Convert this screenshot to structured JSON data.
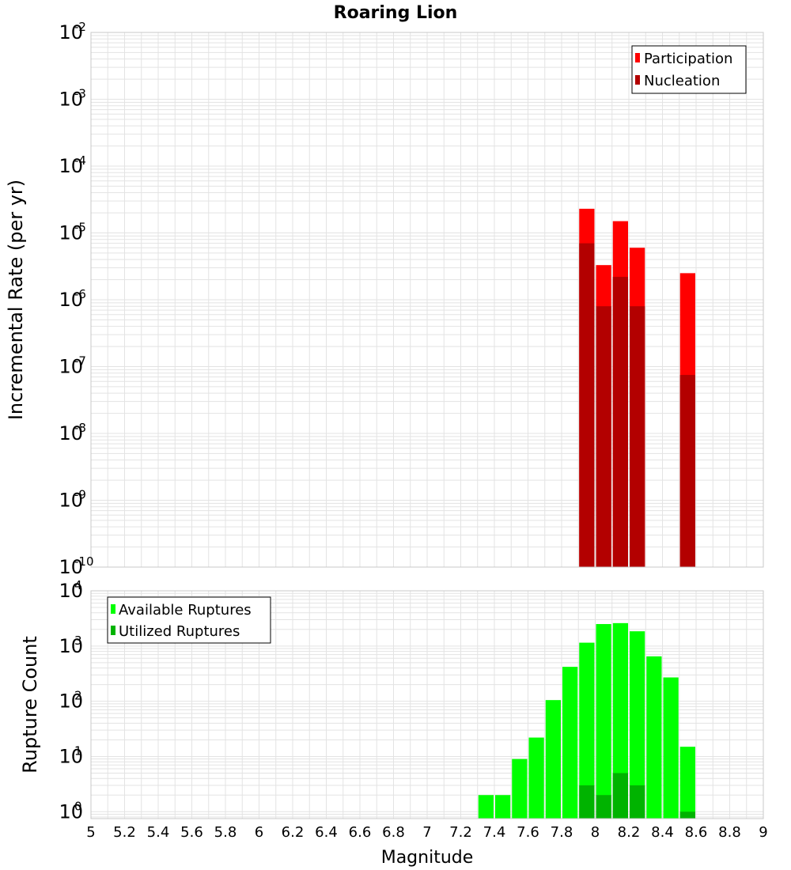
{
  "colors": {
    "participation": "#ff0000",
    "nucleation": "#b30000",
    "available": "#00ff00",
    "utilized": "#00b300",
    "grid": "#e3e3e3",
    "frame": "#c8c8c8"
  },
  "chart_data": [
    {
      "type": "bar",
      "scale": "log",
      "title": "Roaring Lion",
      "xlabel": "Magnitude",
      "ylabel": "Incremental Rate (per yr)",
      "xlim": [
        5,
        9
      ],
      "ylim": [
        1e-10,
        0.01
      ],
      "y_tick_base": "10",
      "y_tick_exponents": [
        "-10",
        "-9",
        "-8",
        "-7",
        "-6",
        "-5",
        "-4",
        "-3",
        "-2"
      ],
      "bar_width": 0.1,
      "grid": true,
      "legend": {
        "position": "top-right",
        "entries": [
          "Participation",
          "Nucleation"
        ]
      },
      "series": [
        {
          "name": "Participation",
          "x": [
            7.95,
            8.05,
            8.15,
            8.25,
            8.55
          ],
          "values": [
            2.3e-05,
            3.3e-06,
            1.5e-05,
            6e-06,
            2.5e-06
          ]
        },
        {
          "name": "Nucleation",
          "x": [
            7.95,
            8.05,
            8.15,
            8.25,
            8.55
          ],
          "values": [
            7e-06,
            8e-07,
            2.2e-06,
            8e-07,
            7.5e-08
          ]
        }
      ]
    },
    {
      "type": "bar",
      "scale": "log",
      "xlabel": "Magnitude",
      "ylabel": "Rupture Count",
      "xlim": [
        5,
        9
      ],
      "ylim": [
        0.75,
        10000
      ],
      "x_ticks": [
        "5",
        "5.2",
        "5.4",
        "5.6",
        "5.8",
        "6",
        "6.2",
        "6.4",
        "6.6",
        "6.8",
        "7",
        "7.2",
        "7.4",
        "7.6",
        "7.8",
        "8",
        "8.2",
        "8.4",
        "8.6",
        "8.8",
        "9"
      ],
      "y_tick_base": "10",
      "y_tick_exponents": [
        "0",
        "1",
        "2",
        "3",
        "4"
      ],
      "bar_width": 0.1,
      "grid": true,
      "legend": {
        "position": "top-left",
        "entries": [
          "Available Ruptures",
          "Utilized Ruptures"
        ]
      },
      "series": [
        {
          "name": "Available Ruptures",
          "x": [
            7.35,
            7.45,
            7.55,
            7.65,
            7.75,
            7.85,
            7.95,
            8.05,
            8.15,
            8.25,
            8.35,
            8.45,
            8.55
          ],
          "values": [
            2,
            2,
            9,
            22,
            105,
            420,
            1150,
            2500,
            2600,
            1850,
            650,
            270,
            15
          ]
        },
        {
          "name": "Utilized Ruptures",
          "x": [
            7.95,
            8.05,
            8.15,
            8.25,
            8.55
          ],
          "values": [
            3,
            2,
            5,
            3,
            1
          ]
        }
      ]
    }
  ]
}
